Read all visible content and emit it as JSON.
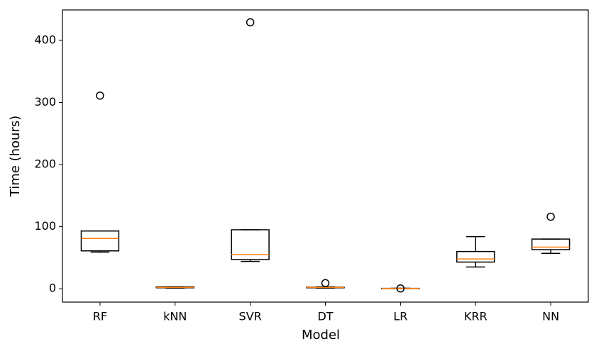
{
  "chart_data": {
    "type": "box",
    "x_label": "Model",
    "y_label": "Time (hours)",
    "categories": [
      "RF",
      "kNN",
      "SVR",
      "DT",
      "LR",
      "KRR",
      "NN"
    ],
    "boxes": [
      {
        "whislo": 59,
        "q1": 61,
        "med": 81,
        "q3": 93,
        "whishi": 93,
        "fliers": [
          311
        ]
      },
      {
        "whislo": 1,
        "q1": 1.5,
        "med": 2,
        "q3": 3,
        "whishi": 3,
        "fliers": []
      },
      {
        "whislo": 44,
        "q1": 47,
        "med": 55,
        "q3": 95,
        "whishi": 95,
        "fliers": [
          429
        ]
      },
      {
        "whislo": 1,
        "q1": 1.5,
        "med": 2,
        "q3": 2.5,
        "whishi": 3,
        "fliers": [
          9
        ]
      },
      {
        "whislo": 0.2,
        "q1": 0.3,
        "med": 0.5,
        "q3": 0.6,
        "whishi": 0.7,
        "fliers": [
          0.5
        ]
      },
      {
        "whislo": 35,
        "q1": 43,
        "med": 48,
        "q3": 60,
        "whishi": 84,
        "fliers": []
      },
      {
        "whislo": 57,
        "q1": 63,
        "med": 67,
        "q3": 80,
        "whishi": 80,
        "fliers": [
          116
        ]
      }
    ],
    "box_color": "#000000",
    "median_color": "#ff7f0e",
    "ylim": [
      -21.5,
      449
    ],
    "yticks": [
      0,
      100,
      200,
      300,
      400
    ]
  }
}
